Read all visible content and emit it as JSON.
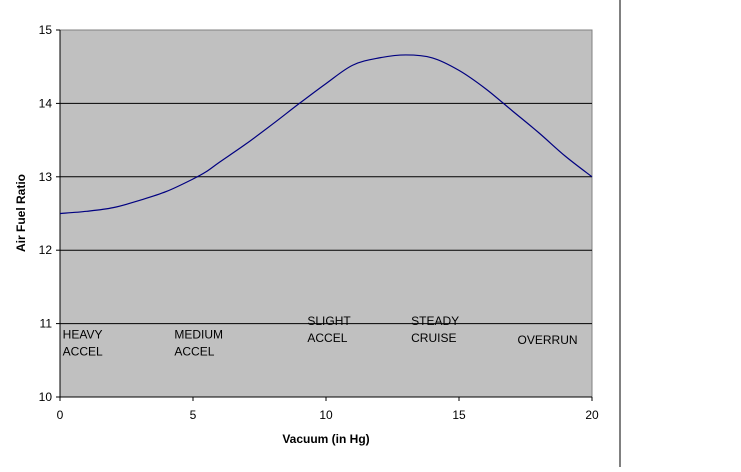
{
  "chart_data": {
    "type": "line",
    "title": "",
    "xlabel": "Vacuum (in Hg)",
    "ylabel": "Air Fuel Ratio",
    "xlim": [
      0,
      20
    ],
    "ylim": [
      10,
      15
    ],
    "x_ticks": [
      0,
      5,
      10,
      15,
      20
    ],
    "y_ticks": [
      10,
      11,
      12,
      13,
      14,
      15
    ],
    "grid": "horizontal",
    "legend": "none",
    "colors": {
      "plot_background": "#c0c0c0",
      "line": "#000080",
      "gridline": "#000000"
    },
    "series": [
      {
        "x": [
          0,
          1,
          2,
          3,
          4,
          5,
          5.5,
          6,
          7,
          8,
          9,
          10,
          11,
          12,
          13,
          14,
          15,
          16,
          17,
          18,
          19,
          20
        ],
        "values": [
          12.5,
          12.53,
          12.58,
          12.68,
          12.8,
          12.97,
          13.07,
          13.2,
          13.45,
          13.72,
          14.0,
          14.27,
          14.52,
          14.62,
          14.66,
          14.62,
          14.45,
          14.2,
          13.9,
          13.6,
          13.28,
          13.0
        ]
      }
    ],
    "annotations": [
      {
        "lines": [
          "HEAVY",
          "ACCEL"
        ],
        "x": 0.1,
        "y": 10.8
      },
      {
        "lines": [
          "MEDIUM",
          "ACCEL"
        ],
        "x": 4.3,
        "y": 10.8
      },
      {
        "lines": [
          "SLIGHT",
          "ACCEL"
        ],
        "x": 9.3,
        "y": 10.98
      },
      {
        "lines": [
          "STEADY",
          "CRUISE"
        ],
        "x": 13.2,
        "y": 10.98
      },
      {
        "lines": [
          "OVERRUN"
        ],
        "x": 17.2,
        "y": 10.72
      }
    ]
  }
}
